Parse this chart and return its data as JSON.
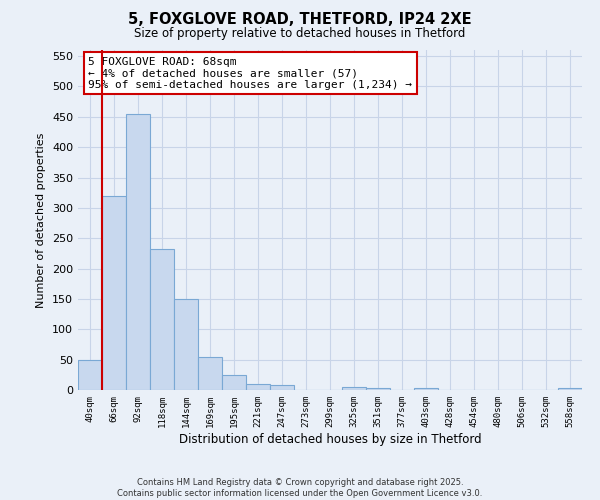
{
  "title1": "5, FOXGLOVE ROAD, THETFORD, IP24 2XE",
  "title2": "Size of property relative to detached houses in Thetford",
  "xlabel": "Distribution of detached houses by size in Thetford",
  "ylabel": "Number of detached properties",
  "bar_labels": [
    "40sqm",
    "66sqm",
    "92sqm",
    "118sqm",
    "144sqm",
    "169sqm",
    "195sqm",
    "221sqm",
    "247sqm",
    "273sqm",
    "299sqm",
    "325sqm",
    "351sqm",
    "377sqm",
    "403sqm",
    "428sqm",
    "454sqm",
    "480sqm",
    "506sqm",
    "532sqm",
    "558sqm"
  ],
  "bar_values": [
    50,
    320,
    455,
    232,
    150,
    55,
    25,
    10,
    8,
    0,
    0,
    5,
    4,
    0,
    4,
    0,
    0,
    0,
    0,
    0,
    3
  ],
  "bar_fill_color": "#c8d8ee",
  "bar_edge_color": "#7aa8d4",
  "grid_color": "#c8d4e8",
  "background_color": "#eaf0f8",
  "ylim": [
    0,
    560
  ],
  "yticks": [
    0,
    50,
    100,
    150,
    200,
    250,
    300,
    350,
    400,
    450,
    500,
    550
  ],
  "vline_x": 1.0,
  "vline_color": "#cc0000",
  "annotation_title": "5 FOXGLOVE ROAD: 68sqm",
  "annotation_line1": "← 4% of detached houses are smaller (57)",
  "annotation_line2": "95% of semi-detached houses are larger (1,234) →",
  "annotation_box_color": "#ffffff",
  "annotation_box_edge": "#cc0000",
  "footer1": "Contains HM Land Registry data © Crown copyright and database right 2025.",
  "footer2": "Contains public sector information licensed under the Open Government Licence v3.0."
}
